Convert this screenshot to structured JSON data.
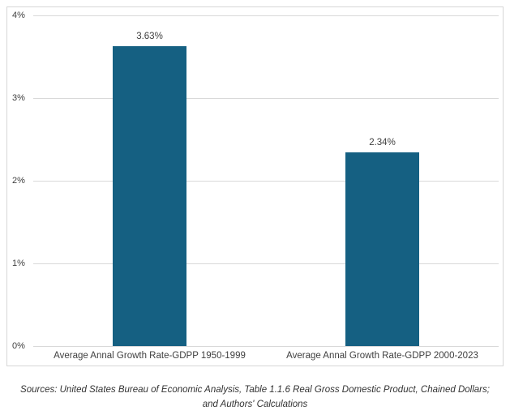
{
  "chart_data": {
    "type": "bar",
    "title": "",
    "categories": [
      "Average Annal Growth Rate-GDPP 1950-1999",
      "Average Annal Growth Rate-GDPP 2000-2023"
    ],
    "values": [
      3.63,
      2.34
    ],
    "data_labels": [
      "3.63%",
      "2.34%"
    ],
    "xlabel": "",
    "ylabel": "",
    "ylim": [
      0,
      4
    ],
    "yticks": [
      {
        "value": 0,
        "label": "0%"
      },
      {
        "value": 1,
        "label": "1%"
      },
      {
        "value": 2,
        "label": "2%"
      },
      {
        "value": 3,
        "label": "3%"
      },
      {
        "value": 4,
        "label": "4%"
      }
    ],
    "grid": true,
    "legend_position": "none",
    "bar_color": "#156082",
    "gridline_color": "#d9d9d9",
    "label_color": "#404040"
  },
  "footer": {
    "sources": "Sources: United States Bureau of Economic Analysis, Table 1.1.6 Real Gross Domestic Product, Chained Dollars; and Authors' Calculations"
  }
}
